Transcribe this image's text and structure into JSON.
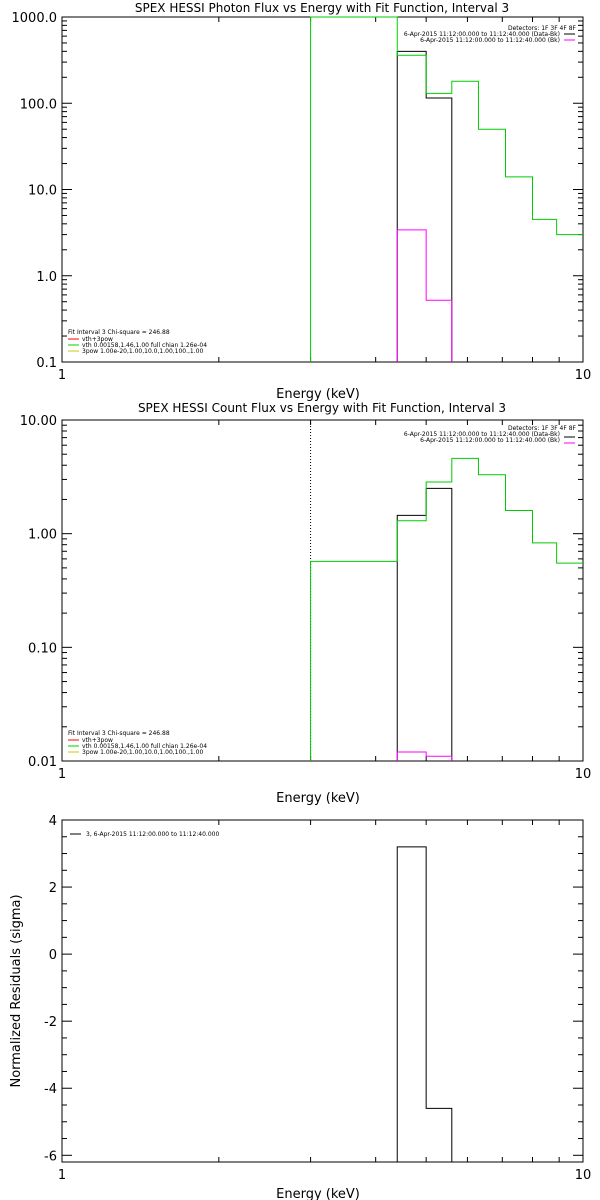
{
  "chart_data": [
    {
      "type": "line",
      "title": "SPEX HESSI Photon Flux vs Energy with Fit Function, Interval 3",
      "xlabel": "Energy (keV)",
      "ylabel": "",
      "xlim": [
        1,
        10
      ],
      "ylim": [
        0.1,
        1000
      ],
      "xscale": "log",
      "yscale": "log",
      "xticks": [
        "1",
        "10"
      ],
      "yticks": [
        "0.1",
        "1.0",
        "10.0",
        "100.0",
        "1000.0"
      ],
      "detectors_text": "Detectors: 1F 3F 4F 8F",
      "legend_tr": [
        {
          "label": "6-Apr-2015 11:12:00.000 to 11:12:40.000 (Data-Bk)",
          "color": "#000000"
        },
        {
          "label": "6-Apr-2015 11:12:00.000 to 11:12:40.000 (Bk)",
          "color": "#ff00ff"
        }
      ],
      "fit_header": "Fit Interval 3   Chi-square = 246.88",
      "legend_bl": [
        {
          "label": "vth+3pow",
          "color": "#ff0000"
        },
        {
          "label": "vth 0.00158,1.46,1.00  full chian 1.26e-04",
          "color": "#00cc00"
        },
        {
          "label": "3pow 1.00e-20,1.00,10.0,1.00,100.,1.00",
          "color": "#cccc00"
        }
      ],
      "series": [
        {
          "color": "#000000",
          "edges": [
            4.4,
            5.0,
            5.6
          ],
          "values": [
            400,
            115
          ]
        },
        {
          "color": "#ff00ff",
          "edges": [
            4.4,
            5.0,
            5.6
          ],
          "values": [
            3.4,
            0.52
          ]
        },
        {
          "color": "#00cc00",
          "edges": [
            3.0,
            4.4,
            5.0,
            5.6,
            6.3,
            7.1,
            8.0,
            8.9,
            10.0
          ],
          "values": [
            1000,
            360,
            130,
            180,
            50,
            14,
            4.5,
            3.0
          ],
          "drop_left": true
        }
      ]
    },
    {
      "type": "line",
      "title": "SPEX HESSI Count Flux vs Energy with Fit Function, Interval 3",
      "xlabel": "Energy (keV)",
      "ylabel": "",
      "xlim": [
        1,
        10
      ],
      "ylim": [
        0.01,
        10
      ],
      "xscale": "log",
      "yscale": "log",
      "xticks": [
        "1",
        "10"
      ],
      "yticks": [
        "0.01",
        "0.10",
        "1.00",
        "10.00"
      ],
      "detectors_text": "Detectors: 1F 3F 4F 8F",
      "legend_tr": [
        {
          "label": "6-Apr-2015 11:12:00.000 to 11:12:40.000 (Data-Bk)",
          "color": "#000000"
        },
        {
          "label": "6-Apr-2015 11:12:00.000 to 11:12:40.000 (Bk)",
          "color": "#ff00ff"
        }
      ],
      "fit_header": "Fit Interval 3   Chi-square = 246.88",
      "legend_bl": [
        {
          "label": "vth+3pow",
          "color": "#ff0000"
        },
        {
          "label": "vth 0.00158,1.46,1.00  full chian 1.26e-04",
          "color": "#00cc00"
        },
        {
          "label": "3pow 1.00e-20,1.00,10.0,1.00,100.,1.00",
          "color": "#cccc00"
        }
      ],
      "vline_x": 3.0,
      "series": [
        {
          "color": "#000000",
          "edges": [
            4.4,
            5.0,
            5.6
          ],
          "values": [
            1.45,
            2.5
          ]
        },
        {
          "color": "#ff00ff",
          "edges": [
            4.4,
            5.0,
            5.6
          ],
          "values": [
            0.012,
            0.011
          ]
        },
        {
          "color": "#00cc00",
          "edges": [
            3.0,
            4.4,
            5.0,
            5.6,
            6.3,
            7.1,
            8.0,
            8.9,
            10.0
          ],
          "values": [
            0.57,
            1.3,
            2.85,
            4.6,
            3.3,
            1.6,
            0.83,
            0.55
          ],
          "drop_left": true
        }
      ]
    },
    {
      "type": "line",
      "title": "",
      "xlabel": "Energy (keV)",
      "ylabel": "Normalized Residuals (sigma)",
      "xlim": [
        1,
        10
      ],
      "ylim": [
        -6.2,
        4
      ],
      "xscale": "log",
      "yscale": "linear",
      "xticks": [
        "1",
        "10"
      ],
      "yticks": [
        "-6",
        "-4",
        "-2",
        "0",
        "2",
        "4"
      ],
      "legend_tl": [
        {
          "label": "3, 6-Apr-2015 11:12:00.000 to 11:12:40.000",
          "color": "#000000"
        }
      ],
      "series": [
        {
          "color": "#000000",
          "edges": [
            4.4,
            5.0,
            5.6
          ],
          "values": [
            3.2,
            -4.6
          ]
        }
      ]
    }
  ]
}
